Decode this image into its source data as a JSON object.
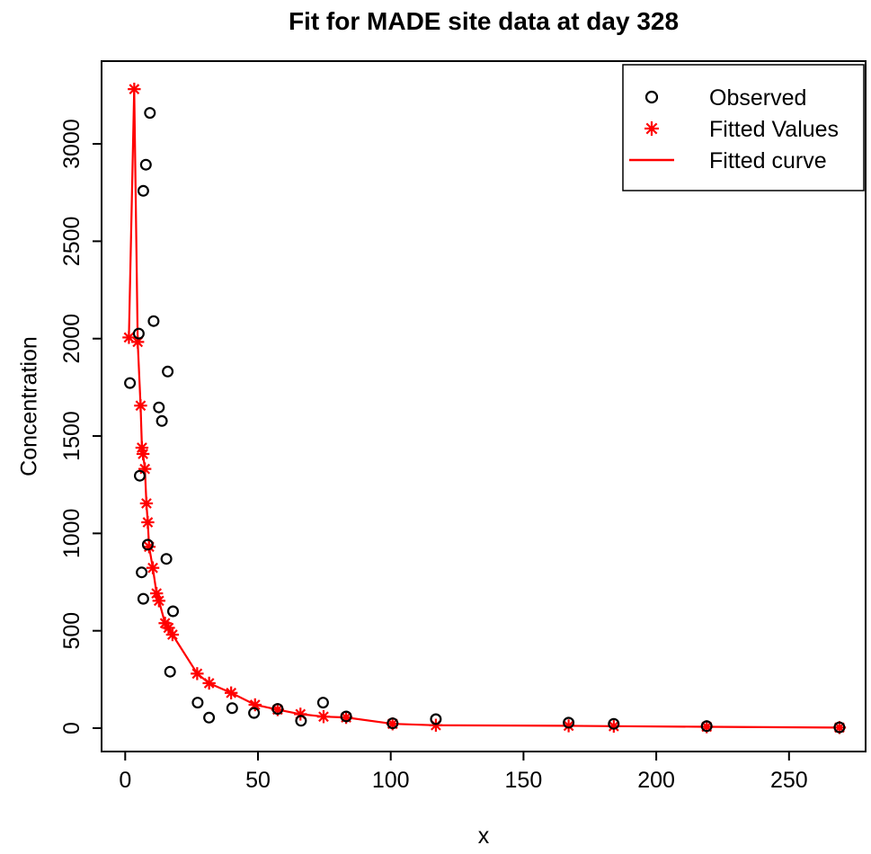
{
  "chart_data": {
    "type": "scatter",
    "title": "Fit for MADE site data at day 328",
    "xlabel": "x",
    "ylabel": "Concentration",
    "xlim": [
      0,
      270
    ],
    "ylim": [
      0,
      3300
    ],
    "x_ticks": [
      0,
      50,
      100,
      150,
      200,
      250
    ],
    "y_ticks": [
      0,
      500,
      1000,
      1500,
      2000,
      2500,
      3000
    ],
    "grid": false,
    "colors": {
      "observed": "#000000",
      "fitted": "#FF0000",
      "frame": "#000000"
    },
    "legend": {
      "position": "top-right",
      "entries": [
        {
          "label": "Observed",
          "marker": "circle",
          "color": "#000000"
        },
        {
          "label": "Fitted Values",
          "marker": "asterisk",
          "color": "#FF0000"
        },
        {
          "label": "Fitted curve",
          "marker": "line",
          "color": "#FF0000"
        }
      ]
    },
    "series": [
      {
        "name": "Observed",
        "render": "points",
        "marker": "circle",
        "color": "#000000",
        "points": [
          [
            1.8,
            1772
          ],
          [
            5.1,
            2026
          ],
          [
            5.5,
            1296
          ],
          [
            6.2,
            800
          ],
          [
            6.8,
            664
          ],
          [
            6.8,
            2759
          ],
          [
            7.8,
            2893
          ],
          [
            8.5,
            942
          ],
          [
            9.3,
            3159
          ],
          [
            10.7,
            2090
          ],
          [
            12.7,
            1647
          ],
          [
            13.8,
            1577
          ],
          [
            15.5,
            869
          ],
          [
            16.0,
            1831
          ],
          [
            16.9,
            290
          ],
          [
            18.0,
            600
          ],
          [
            27.3,
            131
          ],
          [
            31.6,
            54
          ],
          [
            40.3,
            103
          ],
          [
            48.5,
            78
          ],
          [
            57.4,
            99
          ],
          [
            66.2,
            38
          ],
          [
            74.5,
            131
          ],
          [
            83.2,
            60
          ],
          [
            100.7,
            25
          ],
          [
            117,
            46
          ],
          [
            167,
            28
          ],
          [
            184,
            22
          ],
          [
            219,
            10
          ],
          [
            269,
            4
          ]
        ]
      },
      {
        "name": "Fitted Values",
        "render": "points+line",
        "marker": "asterisk",
        "color": "#FF0000",
        "points": [
          [
            1.4,
            2006
          ],
          [
            3.4,
            3281
          ],
          [
            4.7,
            1983
          ],
          [
            5.8,
            1656
          ],
          [
            6.3,
            1440
          ],
          [
            6.7,
            1408
          ],
          [
            7.4,
            1331
          ],
          [
            8.0,
            1154
          ],
          [
            8.5,
            1057
          ],
          [
            9.0,
            931
          ],
          [
            10.4,
            823
          ],
          [
            11.8,
            692
          ],
          [
            12.7,
            654
          ],
          [
            15.0,
            539
          ],
          [
            16.3,
            515
          ],
          [
            17.8,
            480
          ],
          [
            27.1,
            280
          ],
          [
            31.6,
            231
          ],
          [
            39.9,
            181
          ],
          [
            48.9,
            120
          ],
          [
            57.4,
            95
          ],
          [
            66.0,
            72
          ],
          [
            74.7,
            59
          ],
          [
            83.2,
            55
          ],
          [
            100.7,
            22
          ],
          [
            117,
            15
          ],
          [
            167,
            12
          ],
          [
            184,
            10
          ],
          [
            219,
            7
          ],
          [
            269,
            3
          ]
        ]
      }
    ]
  }
}
